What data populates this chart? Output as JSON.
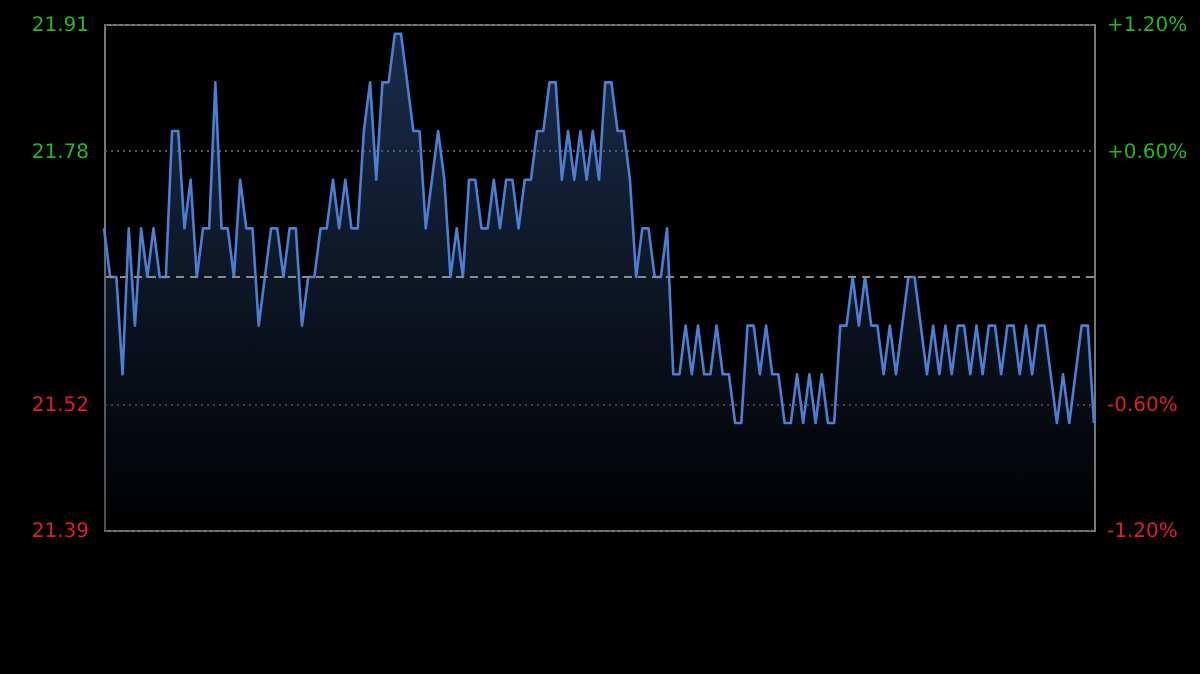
{
  "chart_data": {
    "type": "area",
    "categories": [
      null,
      null,
      null,
      null,
      null,
      null,
      null,
      null,
      null,
      null,
      null,
      null,
      null,
      null,
      null,
      null,
      null,
      null,
      null,
      null,
      null,
      null,
      null,
      null,
      null,
      null,
      null,
      null,
      null,
      null,
      null,
      null,
      null,
      null,
      null,
      null,
      null,
      null,
      null,
      null,
      null,
      null,
      null,
      null,
      null,
      null,
      null,
      null,
      null,
      null,
      null,
      null,
      null,
      null,
      null,
      null,
      null,
      null,
      null,
      null,
      null,
      null,
      null,
      null,
      null,
      null,
      null,
      null,
      null,
      null,
      null,
      null,
      null,
      null,
      null,
      null,
      null,
      null,
      null,
      null,
      null,
      null,
      null,
      null,
      null,
      null,
      null,
      null,
      null,
      null,
      null,
      null,
      null,
      null,
      null,
      null,
      null,
      null,
      null,
      null,
      null,
      null,
      null,
      null,
      null,
      null,
      null,
      null,
      null,
      null,
      null,
      null,
      null,
      null,
      null,
      null,
      null,
      null,
      null,
      null,
      null,
      null,
      null,
      null,
      null,
      null,
      null,
      null,
      null,
      null,
      null,
      null,
      null,
      null,
      null,
      null,
      null,
      null,
      null,
      null,
      null,
      null,
      null,
      null,
      null,
      null,
      null,
      null,
      null,
      null,
      null,
      null,
      null,
      null,
      null,
      null,
      null,
      null,
      null,
      null,
      null
    ],
    "series": [
      {
        "color": "#4a7fd4",
        "values": [
          21.7,
          21.65,
          21.65,
          21.55,
          21.7,
          21.6,
          21.7,
          21.65,
          21.7,
          21.65,
          21.65,
          21.8,
          21.8,
          21.7,
          21.75,
          21.65,
          21.7,
          21.7,
          21.85,
          21.7,
          21.7,
          21.65,
          21.75,
          21.7,
          21.7,
          21.6,
          21.65,
          21.7,
          21.7,
          21.65,
          21.7,
          21.7,
          21.6,
          21.65,
          21.65,
          21.7,
          21.7,
          21.75,
          21.7,
          21.75,
          21.7,
          21.7,
          21.8,
          21.85,
          21.75,
          21.85,
          21.85,
          21.9,
          21.9,
          21.85,
          21.8,
          21.8,
          21.7,
          21.75,
          21.8,
          21.75,
          21.65,
          21.7,
          21.65,
          21.75,
          21.75,
          21.7,
          21.7,
          21.75,
          21.7,
          21.75,
          21.75,
          21.7,
          21.75,
          21.75,
          21.8,
          21.8,
          21.85,
          21.85,
          21.75,
          21.8,
          21.75,
          21.8,
          21.75,
          21.8,
          21.75,
          21.85,
          21.85,
          21.8,
          21.8,
          21.75,
          21.65,
          21.7,
          21.7,
          21.65,
          21.65,
          21.7,
          21.55,
          21.55,
          21.6,
          21.55,
          21.6,
          21.55,
          21.55,
          21.6,
          21.55,
          21.55,
          21.5,
          21.5,
          21.6,
          21.6,
          21.55,
          21.6,
          21.55,
          21.55,
          21.5,
          21.5,
          21.55,
          21.5,
          21.55,
          21.5,
          21.55,
          21.5,
          21.5,
          21.6,
          21.6,
          21.65,
          21.6,
          21.65,
          21.6,
          21.6,
          21.55,
          21.6,
          21.55,
          21.6,
          21.65,
          21.65,
          21.6,
          21.55,
          21.6,
          21.55,
          21.6,
          21.55,
          21.6,
          21.6,
          21.55,
          21.6,
          21.55,
          21.6,
          21.6,
          21.55,
          21.6,
          21.6,
          21.55,
          21.6,
          21.55,
          21.6,
          21.6,
          21.55,
          21.5,
          21.55,
          21.5,
          21.55,
          21.6,
          21.6,
          21.5
        ]
      }
    ],
    "ylim": [
      21.39,
      21.91
    ],
    "yticks": [
      21.39,
      21.52,
      21.78,
      21.91
    ],
    "y2lim": [
      -1.2,
      1.2
    ],
    "y2ticks": [
      {
        "value": -1.2,
        "label": "-1.20%"
      },
      {
        "value": -0.6,
        "label": "-0.60%"
      },
      {
        "value": 0.6,
        "label": "+0.60%"
      },
      {
        "value": 1.2,
        "label": "+1.20%"
      }
    ],
    "ref_lines": [
      {
        "axis": "y",
        "value": 21.65,
        "label": null,
        "color": "#8a8a8a",
        "line_style": "dashed"
      }
    ],
    "grid": "y",
    "tick_labels": "y",
    "line_style": "solid"
  }
}
